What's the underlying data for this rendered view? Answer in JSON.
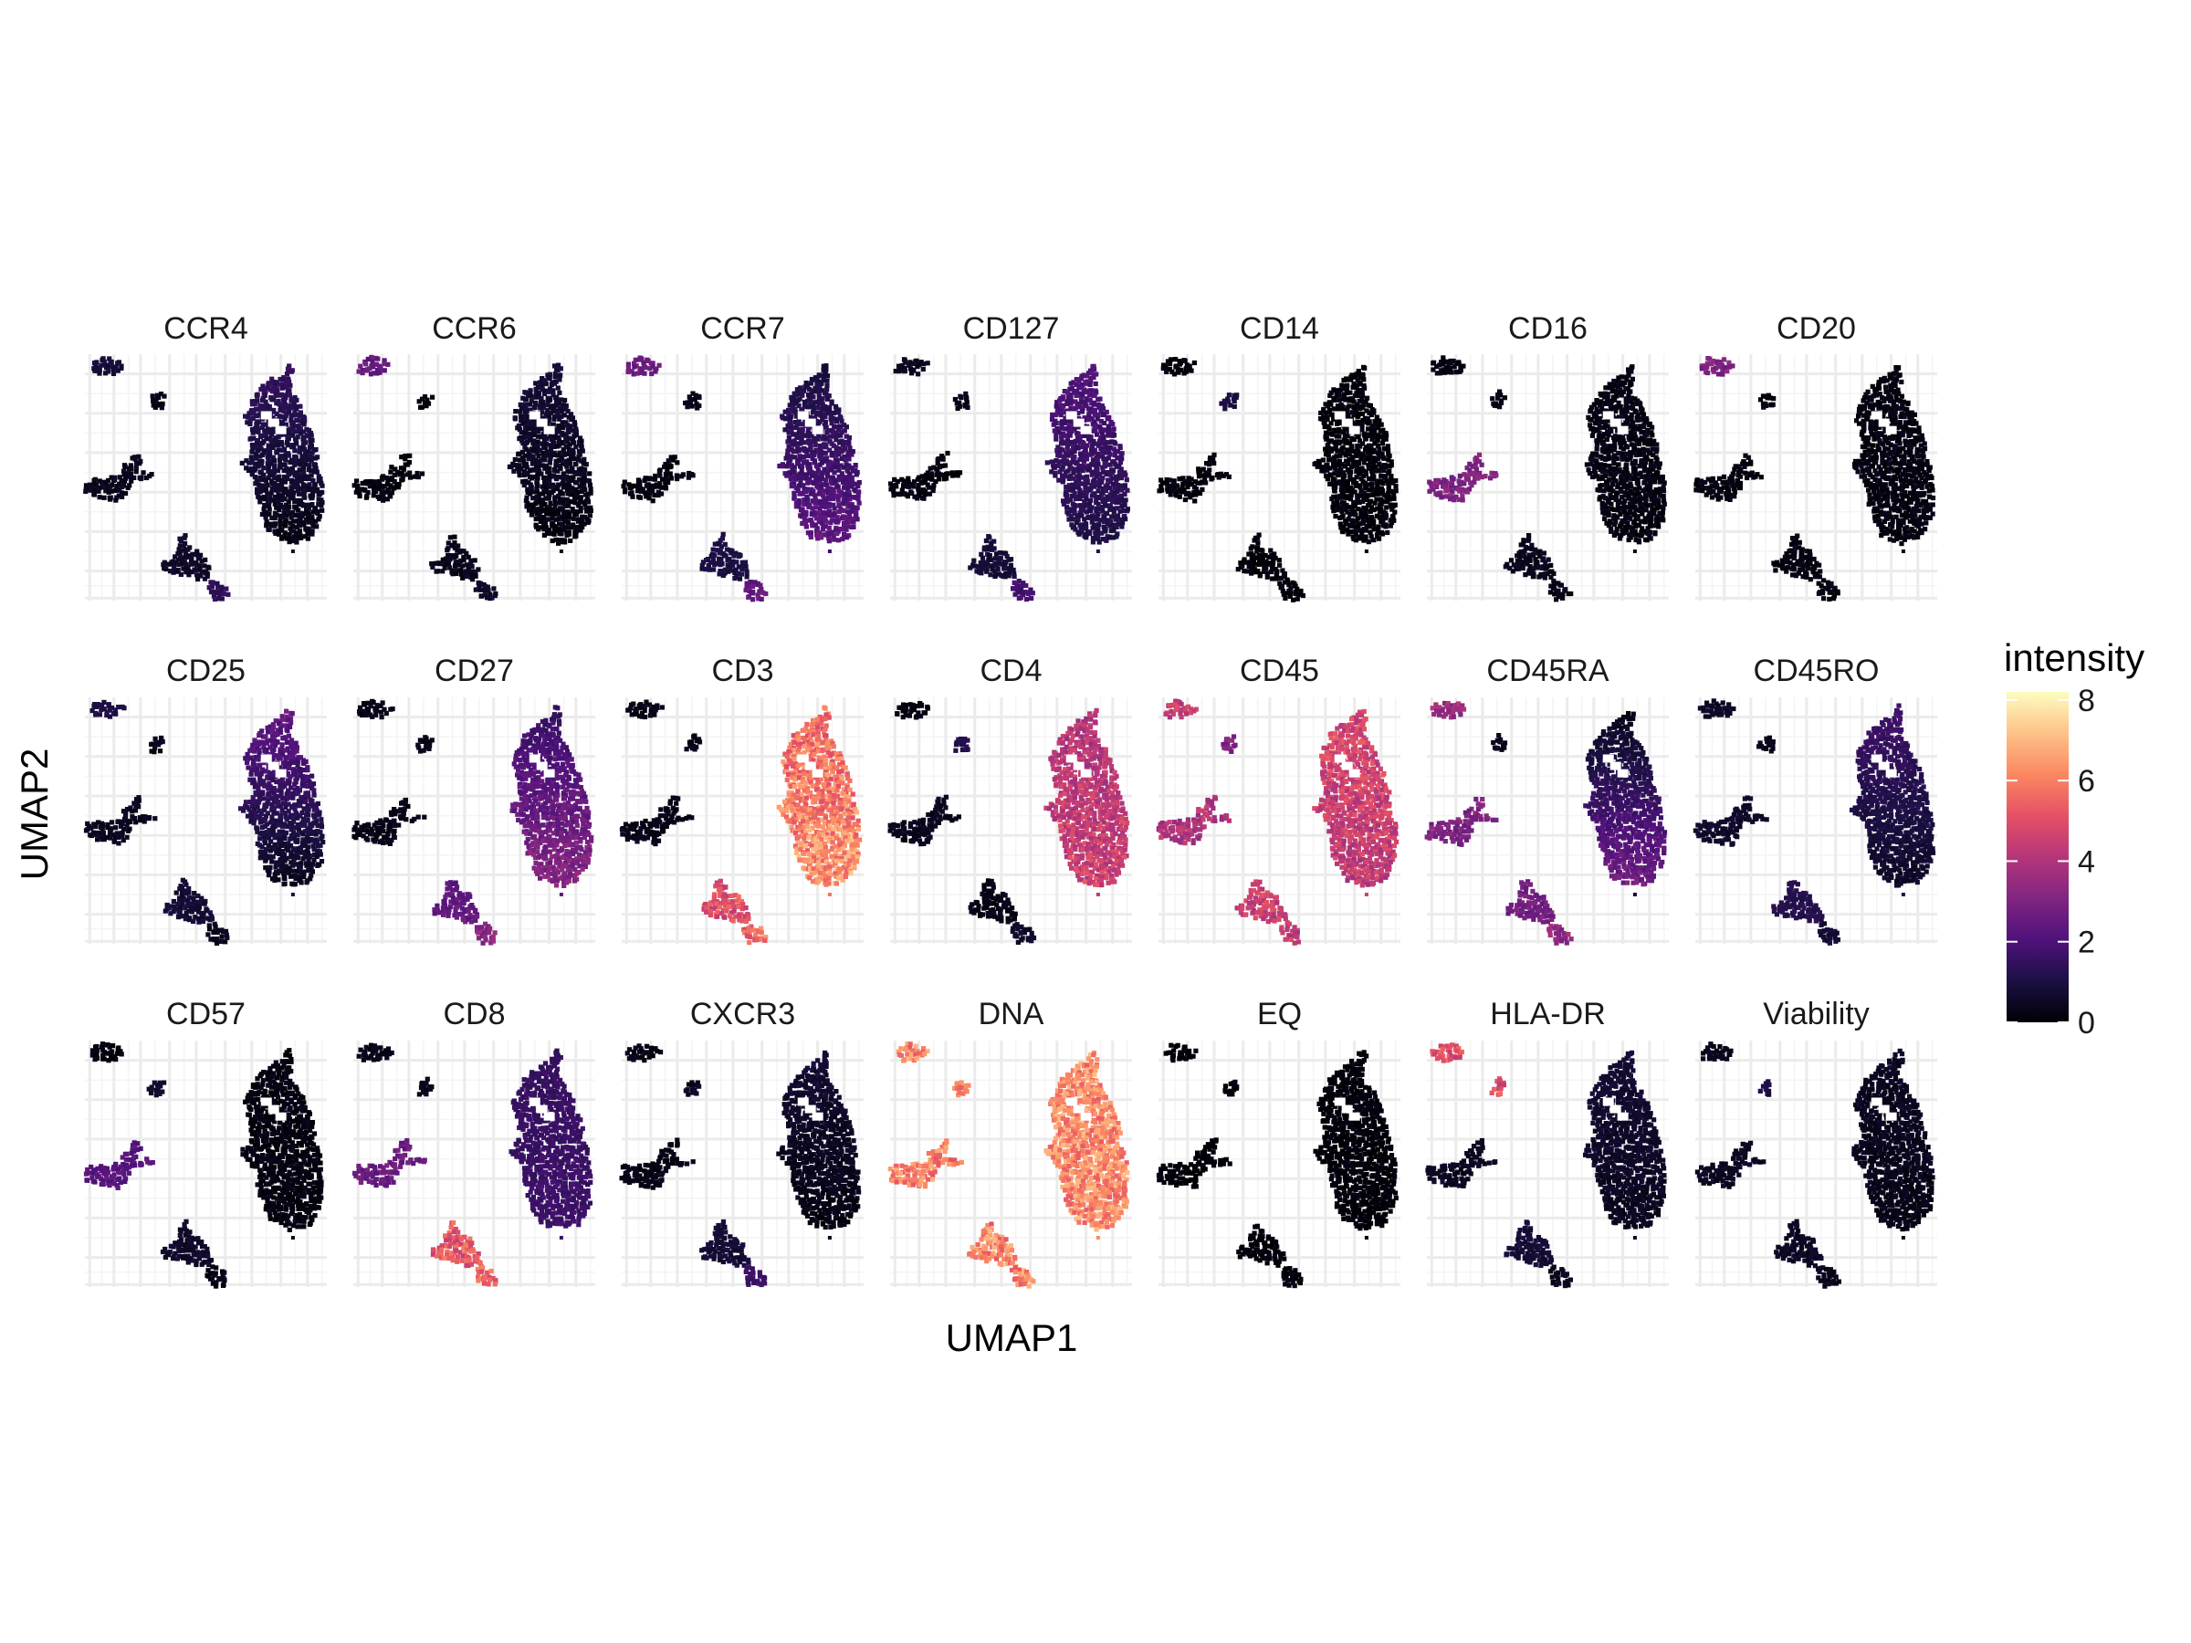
{
  "chart_data": {
    "type": "scatter",
    "facet_layout": {
      "rows": 3,
      "cols": 7
    },
    "xlabel": "UMAP1",
    "ylabel": "UMAP2",
    "legend": {
      "title": "intensity",
      "ticks": [
        "0",
        "2",
        "4",
        "6",
        "8"
      ],
      "range": [
        0,
        8.2
      ],
      "palette": [
        "#000004",
        "#1c1044",
        "#4f127b",
        "#812581",
        "#b5367a",
        "#e55064",
        "#fb8761",
        "#fec287",
        "#fcfdbf"
      ],
      "placement": "right"
    },
    "grid": true,
    "facets": [
      {
        "marker": "CCR4",
        "base": 0.5,
        "body_grad": [
          1.6,
          0.2
        ],
        "left_top": 0.8,
        "left_mid": 0.3,
        "left_big": 0.4,
        "bottom": 0.6,
        "bottom_tip": 1.4
      },
      {
        "marker": "CCR6",
        "base": 0.3,
        "body_grad": [
          0.9,
          0.1
        ],
        "left_top": 2.5,
        "left_mid": 0.2,
        "left_big": 0.2,
        "bottom": 0.4,
        "bottom_tip": 0.6
      },
      {
        "marker": "CCR7",
        "base": 1.6,
        "body_grad": [
          0.8,
          2.4
        ],
        "left_top": 2.6,
        "left_mid": 0.3,
        "left_big": 0.2,
        "bottom": 1.0,
        "bottom_tip": 2.4
      },
      {
        "marker": "CD127",
        "base": 1.2,
        "body_grad": [
          2.2,
          1.0
        ],
        "left_top": 0.4,
        "left_mid": 0.3,
        "left_big": 0.2,
        "bottom": 0.8,
        "bottom_tip": 1.8
      },
      {
        "marker": "CD14",
        "base": 0.1,
        "body_grad": [
          0.1,
          0.1
        ],
        "left_top": 0.1,
        "left_mid": 1.0,
        "left_big": 0.2,
        "bottom": 0.1,
        "bottom_tip": 0.1
      },
      {
        "marker": "CD16",
        "base": 0.2,
        "body_grad": [
          0.3,
          0.2
        ],
        "left_top": 0.2,
        "left_mid": 0.3,
        "left_big": 3.0,
        "bottom": 0.4,
        "bottom_tip": 0.3
      },
      {
        "marker": "CD20",
        "base": 0.2,
        "body_grad": [
          0.2,
          0.2
        ],
        "left_top": 3.0,
        "left_mid": 0.2,
        "left_big": 0.2,
        "bottom": 0.2,
        "bottom_tip": 0.2
      },
      {
        "marker": "CD25",
        "base": 1.0,
        "body_grad": [
          2.6,
          0.3
        ],
        "left_top": 1.0,
        "left_mid": 0.3,
        "left_big": 0.4,
        "bottom": 0.8,
        "bottom_tip": 0.4
      },
      {
        "marker": "CD27",
        "base": 2.4,
        "body_grad": [
          1.5,
          3.2
        ],
        "left_top": 0.3,
        "left_mid": 0.3,
        "left_big": 0.3,
        "bottom": 2.4,
        "bottom_tip": 3.2
      },
      {
        "marker": "CD3",
        "base": 5.8,
        "body_grad": [
          5.5,
          6.4
        ],
        "left_top": 0.3,
        "left_mid": 0.3,
        "left_big": 0.3,
        "bottom": 5.0,
        "bottom_tip": 5.6
      },
      {
        "marker": "CD4",
        "base": 4.3,
        "body_grad": [
          4.0,
          4.6
        ],
        "left_top": 0.2,
        "left_mid": 1.2,
        "left_big": 0.4,
        "bottom": 0.3,
        "bottom_tip": 0.6
      },
      {
        "marker": "CD45",
        "base": 4.6,
        "body_grad": [
          4.8,
          4.3
        ],
        "left_top": 4.5,
        "left_mid": 3.0,
        "left_big": 4.0,
        "bottom": 4.5,
        "bottom_tip": 4.4
      },
      {
        "marker": "CD45RA",
        "base": 0.8,
        "body_grad": [
          0.2,
          2.8
        ],
        "left_top": 3.6,
        "left_mid": 0.4,
        "left_big": 3.0,
        "bottom": 2.8,
        "bottom_tip": 3.4
      },
      {
        "marker": "CD45RO",
        "base": 1.2,
        "body_grad": [
          1.8,
          0.5
        ],
        "left_top": 0.5,
        "left_mid": 0.4,
        "left_big": 0.6,
        "bottom": 1.2,
        "bottom_tip": 0.8
      },
      {
        "marker": "CD57",
        "base": 0.2,
        "body_grad": [
          0.2,
          0.2
        ],
        "left_top": 0.2,
        "left_mid": 0.6,
        "left_big": 2.2,
        "bottom": 0.6,
        "bottom_tip": 0.2
      },
      {
        "marker": "CD8",
        "base": 1.6,
        "body_grad": [
          1.5,
          1.7
        ],
        "left_top": 0.3,
        "left_mid": 0.4,
        "left_big": 2.6,
        "bottom": 5.2,
        "bottom_tip": 5.4
      },
      {
        "marker": "CXCR3",
        "base": 0.4,
        "body_grad": [
          0.8,
          0.2
        ],
        "left_top": 0.3,
        "left_mid": 0.4,
        "left_big": 0.3,
        "bottom": 0.8,
        "bottom_tip": 1.6
      },
      {
        "marker": "DNA",
        "base": 6.2,
        "body_grad": [
          6.2,
          6.2
        ],
        "left_top": 6.1,
        "left_mid": 6.1,
        "left_big": 6.0,
        "bottom": 6.1,
        "bottom_tip": 6.1
      },
      {
        "marker": "EQ",
        "base": 0.1,
        "body_grad": [
          0.1,
          0.1
        ],
        "left_top": 0.1,
        "left_mid": 0.1,
        "left_big": 0.1,
        "bottom": 0.1,
        "bottom_tip": 0.1
      },
      {
        "marker": "HLA-DR",
        "base": 0.5,
        "body_grad": [
          0.8,
          0.4
        ],
        "left_top": 5.0,
        "left_mid": 5.0,
        "left_big": 0.5,
        "bottom": 0.8,
        "bottom_tip": 0.4
      },
      {
        "marker": "Viability",
        "base": 0.4,
        "body_grad": [
          0.5,
          0.3
        ],
        "left_top": 0.4,
        "left_mid": 1.0,
        "left_big": 0.5,
        "bottom": 0.5,
        "bottom_tip": 0.4
      }
    ]
  }
}
